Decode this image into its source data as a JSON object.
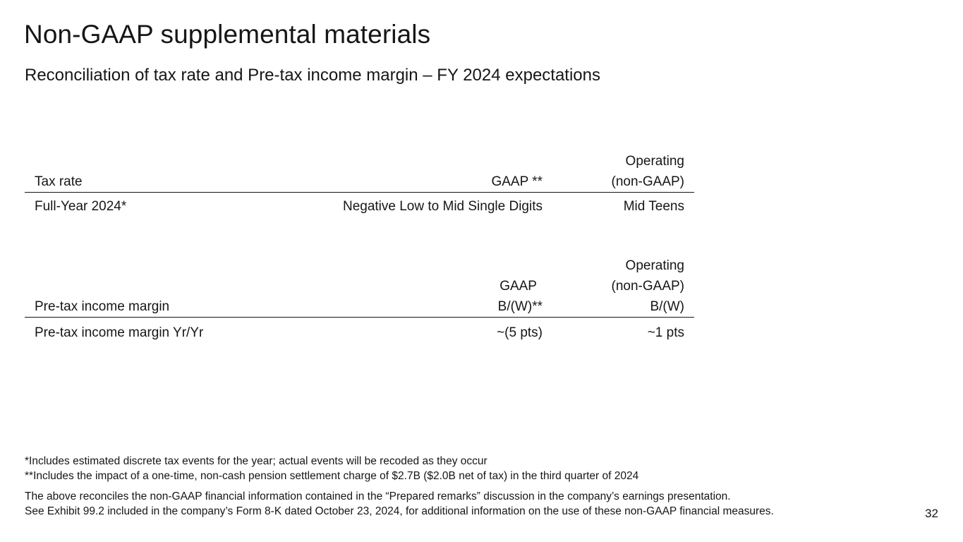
{
  "slide": {
    "title": "Non-GAAP supplemental materials",
    "subtitle": "Reconciliation of tax rate and Pre-tax income margin – FY 2024 expectations",
    "page_number": "32"
  },
  "tax_table": {
    "headers": {
      "label": "Tax rate",
      "gaap": [
        "GAAP **"
      ],
      "operating": [
        "Operating",
        "(non-GAAP)"
      ]
    },
    "rows": [
      {
        "label": "Full-Year 2024*",
        "gaap": "Negative Low to Mid Single Digits",
        "operating": "Mid Teens"
      }
    ]
  },
  "margin_table": {
    "headers": {
      "label": "Pre-tax income margin",
      "gaap": [
        "GAAP",
        "B/(W)**"
      ],
      "operating": [
        "Operating",
        "(non-GAAP)",
        "B/(W)"
      ]
    },
    "rows": [
      {
        "label": "Pre-tax income margin Yr/Yr",
        "gaap": "~(5 pts)",
        "operating": "~1 pts"
      }
    ]
  },
  "footnotes": {
    "note1": "*Includes estimated discrete tax events for the year; actual events will be recoded as they occur",
    "note2": "**Includes the impact of a one-time, non-cash pension settlement charge of $2.7B ($2.0B net of tax) in the third quarter of 2024",
    "note3": "The above reconciles the non-GAAP financial information contained in the “Prepared remarks” discussion in the company’s earnings presentation.",
    "note4": "See Exhibit 99.2 included in the company’s Form 8-K dated October 23, 2024, for additional information on the use of these non-GAAP financial measures."
  }
}
